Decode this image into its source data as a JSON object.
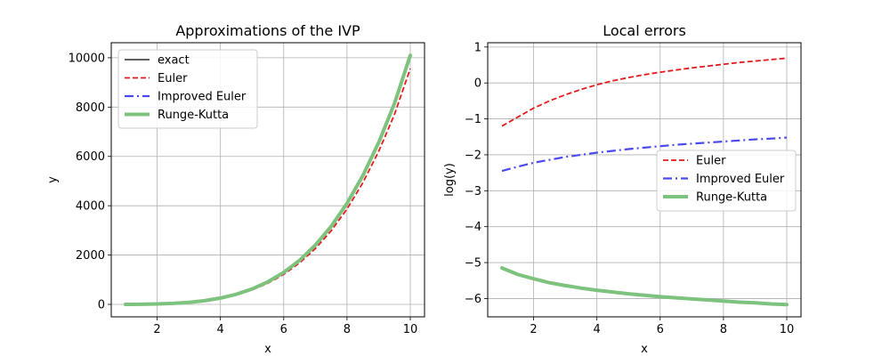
{
  "chart_data": [
    {
      "type": "line",
      "title": "Approximations of the IVP",
      "xlabel": "x",
      "ylabel": "y",
      "xlim": [
        0.55,
        10.45
      ],
      "ylim": [
        -505,
        10610
      ],
      "xticks": [
        2,
        4,
        6,
        8,
        10
      ],
      "yticks": [
        0,
        2000,
        4000,
        6000,
        8000,
        10000
      ],
      "ytick_labels": [
        "0",
        "2000",
        "4000",
        "6000",
        "8000",
        "10000"
      ],
      "grid": true,
      "legend_position": "upper-left",
      "x": [
        1,
        1.5,
        2,
        2.5,
        3,
        3.5,
        4,
        4.5,
        5,
        5.5,
        6,
        6.5,
        7,
        7.5,
        8,
        8.5,
        9,
        9.5,
        10
      ],
      "series": [
        {
          "name": "exact",
          "color": "#000000",
          "style": "solid",
          "width": 1.2,
          "values": [
            1,
            5,
            16,
            39,
            81,
            150,
            256,
            410,
            625,
            915,
            1296,
            1785,
            2401,
            3164,
            4096,
            5220,
            6561,
            8145,
            10000
          ]
        },
        {
          "name": "Euler",
          "color": "#e41a1c",
          "style": "dashed",
          "width": 1.8,
          "values": [
            1,
            4.5,
            14.5,
            36,
            75,
            139,
            238,
            383,
            585,
            858,
            1218,
            1680,
            2262,
            2985,
            3867,
            4930,
            6200,
            7700,
            9560
          ]
        },
        {
          "name": "Improved Euler",
          "color": "#4a4aec",
          "style": "dashdot",
          "width": 2.2,
          "values": [
            1,
            5,
            16,
            39,
            81,
            150,
            256,
            410,
            626,
            917,
            1299,
            1790,
            2408,
            3173,
            4108,
            5235,
            6580,
            8170,
            10030
          ]
        },
        {
          "name": "Runge-Kutta",
          "color": "#7dc27d",
          "style": "solid",
          "width": 4,
          "values": [
            1,
            5,
            16,
            39,
            81,
            150,
            256,
            410,
            625,
            915,
            1296,
            1785,
            2401,
            3164,
            4096,
            5220,
            6561,
            8145,
            10100
          ]
        }
      ]
    },
    {
      "type": "line",
      "title": "Local errors",
      "xlabel": "x",
      "ylabel": "log(y)",
      "xlim": [
        0.55,
        10.45
      ],
      "ylim": [
        -6.51,
        1.12
      ],
      "xticks": [
        2,
        4,
        6,
        8,
        10
      ],
      "yticks": [
        1,
        0,
        -1,
        -2,
        -3,
        -4,
        -5,
        -6
      ],
      "ytick_labels": [
        "1",
        "0",
        "−1",
        "−2",
        "−3",
        "−4",
        "−5",
        "−6"
      ],
      "grid": true,
      "legend_position": "center-right",
      "x": [
        1,
        1.5,
        2,
        2.5,
        3,
        3.5,
        4,
        4.5,
        5,
        5.5,
        6,
        6.5,
        7,
        7.5,
        8,
        8.5,
        9,
        9.5,
        10
      ],
      "series": [
        {
          "name": "Euler",
          "color": "#e41a1c",
          "style": "dashed",
          "width": 1.8,
          "values": [
            -1.2,
            -0.95,
            -0.7,
            -0.5,
            -0.33,
            -0.18,
            -0.05,
            0.06,
            0.15,
            0.23,
            0.3,
            0.36,
            0.42,
            0.47,
            0.52,
            0.57,
            0.61,
            0.65,
            0.69
          ]
        },
        {
          "name": "Improved Euler",
          "color": "#4a4aec",
          "style": "dashdot",
          "width": 2.2,
          "values": [
            -2.45,
            -2.33,
            -2.22,
            -2.14,
            -2.06,
            -2.0,
            -1.94,
            -1.89,
            -1.84,
            -1.8,
            -1.76,
            -1.72,
            -1.69,
            -1.66,
            -1.63,
            -1.6,
            -1.57,
            -1.55,
            -1.52
          ]
        },
        {
          "name": "Runge-Kutta",
          "color": "#7dc27d",
          "style": "solid",
          "width": 4,
          "values": [
            -5.15,
            -5.33,
            -5.45,
            -5.56,
            -5.64,
            -5.71,
            -5.77,
            -5.82,
            -5.87,
            -5.91,
            -5.95,
            -5.98,
            -6.01,
            -6.04,
            -6.07,
            -6.1,
            -6.12,
            -6.15,
            -6.17
          ]
        }
      ]
    }
  ]
}
